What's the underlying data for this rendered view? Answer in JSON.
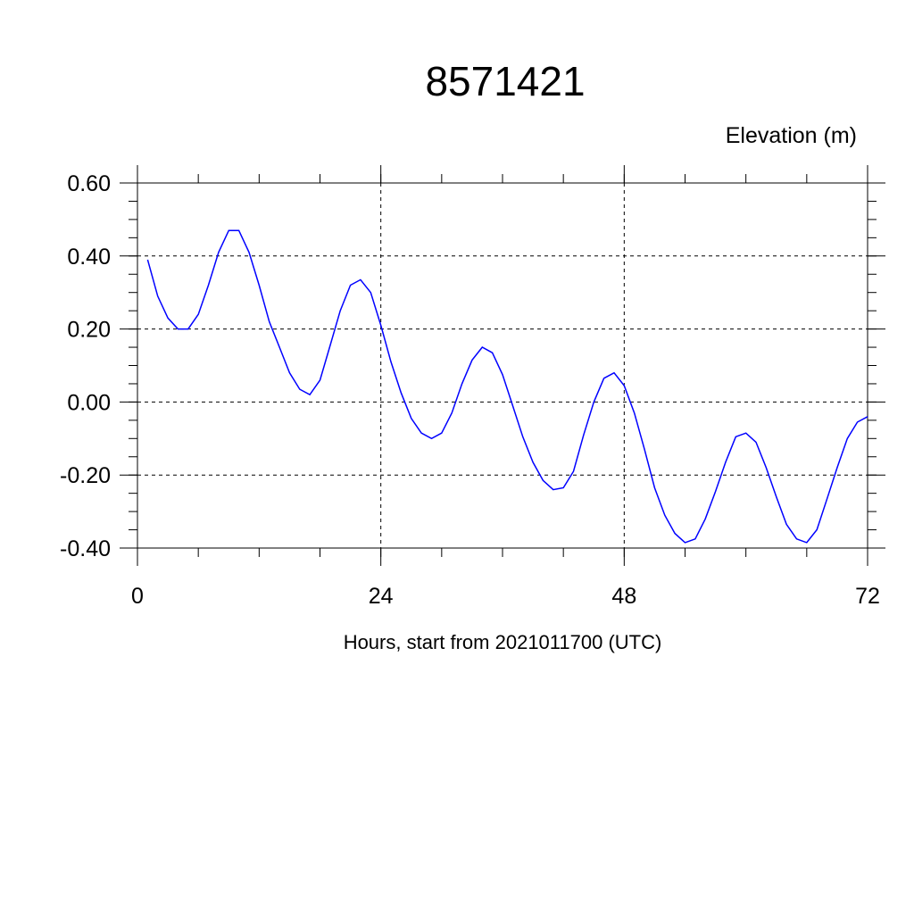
{
  "chart_data": {
    "type": "line",
    "title": "8571421",
    "ylabel": "Elevation (m)",
    "xlabel": "Hours, start from 2021011700 (UTC)",
    "xlim": [
      0,
      72
    ],
    "ylim": [
      -0.4,
      0.6
    ],
    "xticks": [
      0,
      24,
      48,
      72
    ],
    "xtick_labels": [
      "0",
      "24",
      "48",
      "72"
    ],
    "yticks": [
      -0.4,
      -0.2,
      0.0,
      0.2,
      0.4,
      0.6
    ],
    "ytick_labels": [
      "-0.40",
      "-0.20",
      "0.00",
      "0.20",
      "0.40",
      "0.60"
    ],
    "grid": true,
    "series": [
      {
        "color": "#0000ff",
        "x": [
          1,
          2,
          3,
          4,
          5,
          6,
          7,
          8,
          9,
          10,
          11,
          12,
          13,
          14,
          15,
          16,
          17,
          18,
          19,
          20,
          21,
          22,
          23,
          24,
          25,
          26,
          27,
          28,
          29,
          30,
          31,
          32,
          33,
          34,
          35,
          36,
          37,
          38,
          39,
          40,
          41,
          42,
          43,
          44,
          45,
          46,
          47,
          48,
          49,
          50,
          51,
          52,
          53,
          54,
          55,
          56,
          57,
          58,
          59,
          60,
          61,
          62,
          63,
          64,
          65,
          66,
          67,
          68,
          69,
          70,
          71,
          72
        ],
        "values": [
          0.39,
          0.29,
          0.23,
          0.2,
          0.2,
          0.24,
          0.32,
          0.41,
          0.47,
          0.47,
          0.41,
          0.32,
          0.22,
          0.15,
          0.08,
          0.035,
          0.02,
          0.06,
          0.155,
          0.25,
          0.32,
          0.335,
          0.3,
          0.21,
          0.11,
          0.025,
          -0.045,
          -0.085,
          -0.1,
          -0.085,
          -0.03,
          0.05,
          0.115,
          0.15,
          0.135,
          0.075,
          -0.01,
          -0.095,
          -0.165,
          -0.215,
          -0.24,
          -0.235,
          -0.19,
          -0.09,
          0.0,
          0.065,
          0.08,
          0.045,
          -0.03,
          -0.13,
          -0.235,
          -0.31,
          -0.36,
          -0.385,
          -0.375,
          -0.32,
          -0.245,
          -0.165,
          -0.095,
          -0.085,
          -0.11,
          -0.18,
          -0.26,
          -0.335,
          -0.375,
          -0.385,
          -0.35,
          -0.265,
          -0.18,
          -0.1,
          -0.055,
          -0.04
        ]
      }
    ]
  }
}
